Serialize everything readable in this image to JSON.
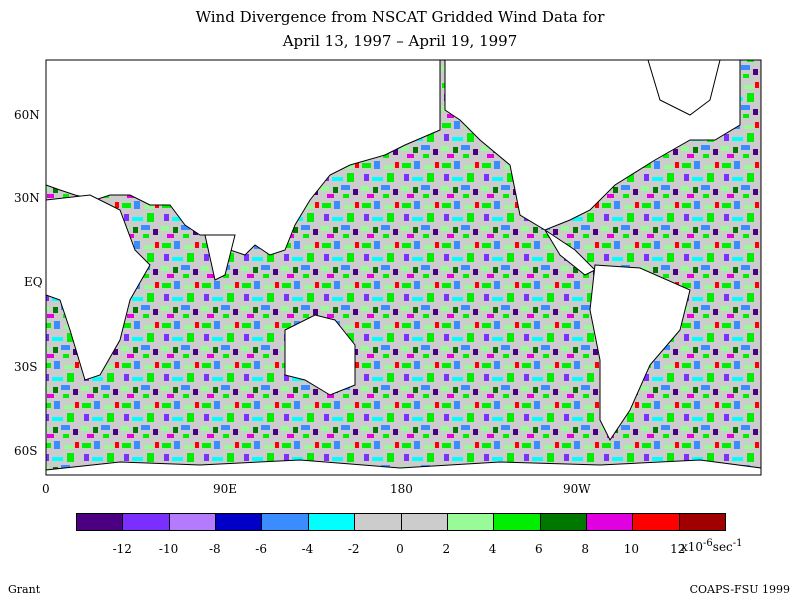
{
  "title": {
    "line1": "Wind Divergence from NSCAT Gridded Wind Data for",
    "line2": "April 13, 1997 – April 19, 1997"
  },
  "map": {
    "lat_labels": [
      "60N",
      "30N",
      "EQ",
      "30S",
      "60S"
    ],
    "lon_labels": [
      "0",
      "90E",
      "180",
      "90W"
    ],
    "land_color": "#ffffff",
    "coastline_color": "#000000"
  },
  "colorbar": {
    "colors": [
      "#4b0082",
      "#7b2fff",
      "#b57bff",
      "#0000c8",
      "#3a8cff",
      "#00ffff",
      "#cccccc",
      "#cccccc",
      "#98fb98",
      "#00ee00",
      "#007800",
      "#e000e0",
      "#ff0000",
      "#a00000"
    ],
    "tick_labels": [
      "-12",
      "-10",
      "-8",
      "-6",
      "-4",
      "-2",
      "0",
      "2",
      "4",
      "6",
      "8",
      "10",
      "12"
    ],
    "unit_prefix": "x10",
    "unit_exp1": "-6",
    "unit_mid": "sec",
    "unit_exp2": "-1"
  },
  "credits": {
    "left": "Grant",
    "right": "COAPS-FSU 1999"
  }
}
